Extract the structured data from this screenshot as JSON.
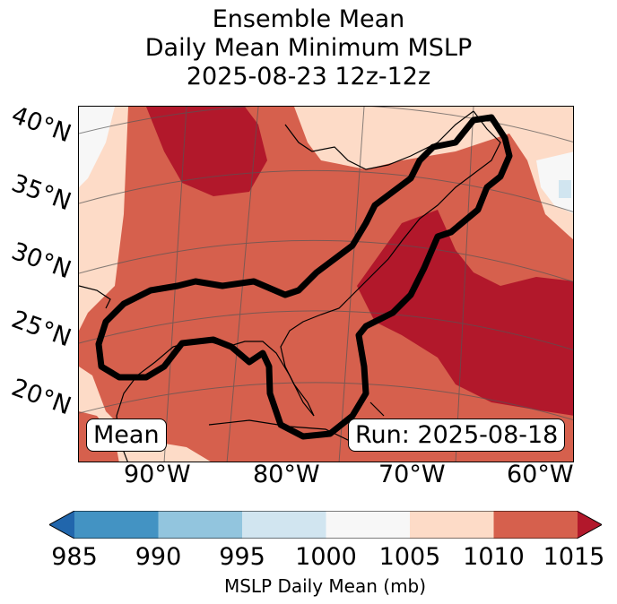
{
  "title": {
    "line1": "Ensemble Mean",
    "line2": "Daily Mean Minimum MSLP",
    "line3": "2025-08-23 12z-12z"
  },
  "map": {
    "lat_labels": [
      "40°N",
      "35°N",
      "30°N",
      "25°N",
      "20°N"
    ],
    "lon_labels": [
      "90°W",
      "80°W",
      "70°W",
      "60°W"
    ],
    "mean_box": "Mean",
    "run_box": "Run: 2025-08-18"
  },
  "colorbar": {
    "ticks": [
      "985",
      "990",
      "995",
      "1000",
      "1005",
      "1010",
      "1015"
    ],
    "label": "MSLP Daily Mean (mb)",
    "colors": {
      "below": "#2166ac",
      "985_990": "#4393c3",
      "990_995": "#92c5de",
      "995_1000": "#d1e5f0",
      "1000_1005": "#f7f7f7",
      "1005_1010": "#fddbc7",
      "1010_1015": "#d6604d",
      "above": "#b2182b"
    }
  }
}
